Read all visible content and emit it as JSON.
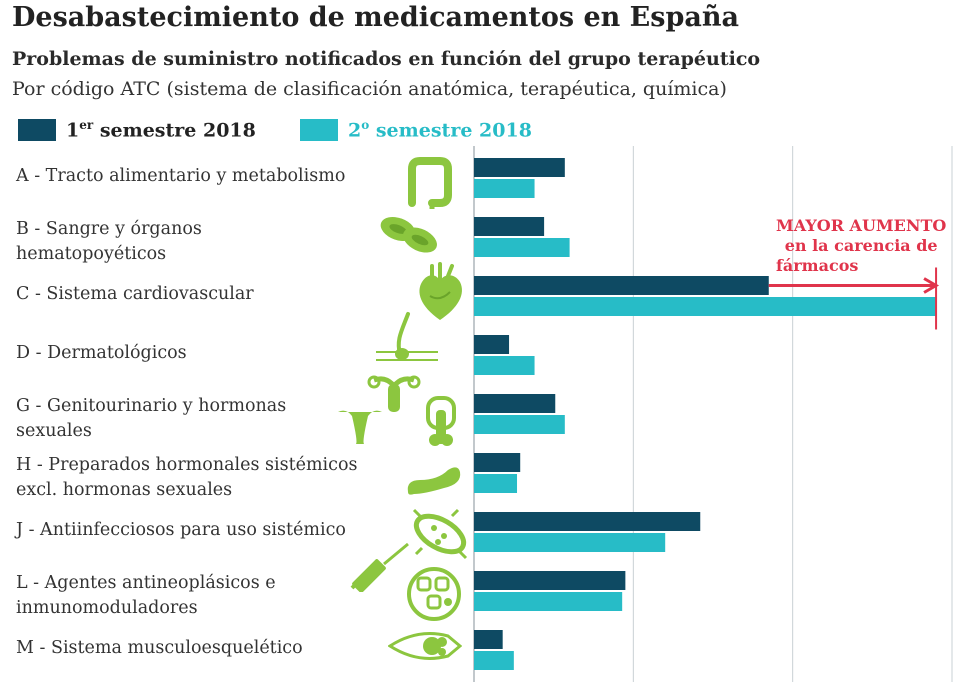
{
  "title": "Desabastecimiento de medicamentos en España",
  "subtitle": "Problemas de suministro notificados en función del grupo terapéutico",
  "note": "Por código ATC (sistema de clasificación anatómica, terapéutica, química)",
  "legend": {
    "s1": {
      "base": "1",
      "sup": "er",
      "rest": " semestre 2018",
      "color": "#0e4a63"
    },
    "s2": {
      "base": "2",
      "sup": "o",
      "rest": " semestre 2018",
      "color": "#27bcc7"
    }
  },
  "annotation": {
    "line1": "MAYOR AUMENTO",
    "line2": "en la carencia de",
    "line3": "fármacos",
    "color": "#e0344b"
  },
  "icon_color": "#8cc63f",
  "chart_data": {
    "type": "bar",
    "orientation": "horizontal",
    "title": "Problemas de suministro notificados en función del grupo terapéutico",
    "xlim": [
      0,
      300
    ],
    "grid": true,
    "tick_labels_visible": false,
    "categories": [
      {
        "code": "A",
        "line1": "A - Tracto alimentario y metabolismo",
        "line2": "",
        "icon": "intestine-icon"
      },
      {
        "code": "B",
        "line1": "B - Sangre y órganos",
        "line2": "hematopoyéticos",
        "icon": "blood-cells-icon"
      },
      {
        "code": "C",
        "line1": "C - Sistema cardiovascular",
        "line2": "",
        "icon": "heart-icon"
      },
      {
        "code": "D",
        "line1": "D - Dermatológicos",
        "line2": "",
        "icon": "skin-hair-icon"
      },
      {
        "code": "G",
        "line1": "G - Genitourinario y hormonas",
        "line2": "sexuales",
        "icon": "genitourinary-icon"
      },
      {
        "code": "H",
        "line1": "H - Preparados hormonales sistémicos",
        "line2": "excl. hormonas sexuales",
        "icon": "pancreas-icon"
      },
      {
        "code": "J",
        "line1": "J - Antiinfecciosos para uso sistémico",
        "line2": "",
        "icon": "bacteria-syringe-icon"
      },
      {
        "code": "L",
        "line1": "L - Agentes antineoplásicos e",
        "line2": "inmunomoduladores",
        "icon": "cells-icon"
      },
      {
        "code": "M",
        "line1": "M - Sistema musculoesquelético",
        "line2": "",
        "icon": "muscle-icon"
      }
    ],
    "series": [
      {
        "name": "1er semestre 2018",
        "color": "#0e4a63",
        "values": [
          57,
          44,
          185,
          22,
          51,
          29,
          142,
          95,
          18
        ]
      },
      {
        "name": "2º semestre 2018",
        "color": "#27bcc7",
        "values": [
          38,
          60,
          290,
          38,
          57,
          27,
          120,
          93,
          25
        ]
      }
    ]
  }
}
